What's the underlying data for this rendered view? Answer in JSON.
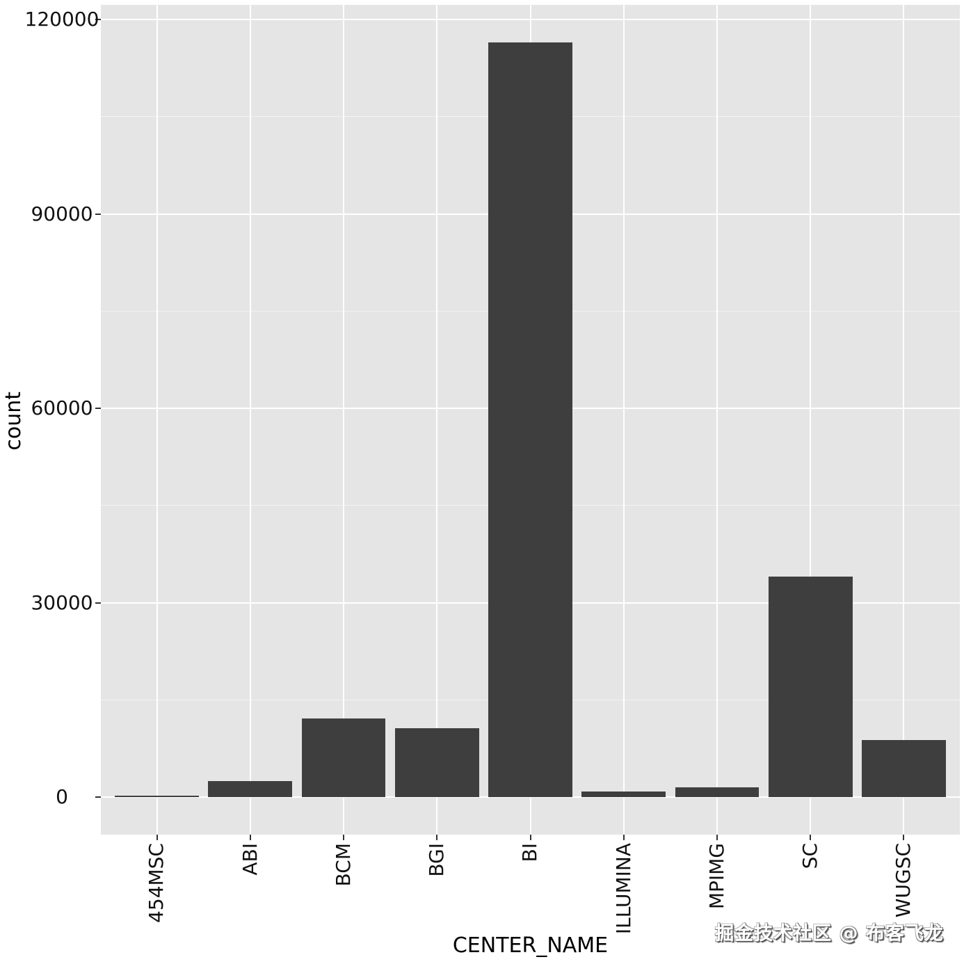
{
  "watermark": {
    "text": "掘金技术社区 @ 布客飞龙"
  },
  "chart_data": {
    "type": "bar",
    "title": "",
    "xlabel": "CENTER_NAME",
    "ylabel": "count",
    "categories": [
      "454MSC",
      "ABI",
      "BCM",
      "BGI",
      "BI",
      "ILLUMINA",
      "MPIMG",
      "SC",
      "WUGSC"
    ],
    "values": [
      200,
      2500,
      12100,
      10600,
      116500,
      860,
      1500,
      34000,
      8800
    ],
    "ylim": [
      0,
      122300
    ],
    "yticks": [
      0,
      30000,
      60000,
      90000,
      120000
    ],
    "ytick_labels": [
      "0",
      "30000",
      "60000",
      "90000",
      "120000"
    ],
    "yticks_minor": [
      15000,
      45000,
      75000,
      105000
    ],
    "grid": "horizontal major+minor, vertical major at category centers",
    "legend": false,
    "theme": "ggplot-gray",
    "colors": {
      "panel_bg": "#e5e5e5",
      "bar_fill": "#3e3e3e",
      "grid_major": "#ffffff",
      "grid_minor": "rgba(255,255,255,0.55)",
      "tick_mark": "#333333",
      "text": "#111111"
    }
  }
}
